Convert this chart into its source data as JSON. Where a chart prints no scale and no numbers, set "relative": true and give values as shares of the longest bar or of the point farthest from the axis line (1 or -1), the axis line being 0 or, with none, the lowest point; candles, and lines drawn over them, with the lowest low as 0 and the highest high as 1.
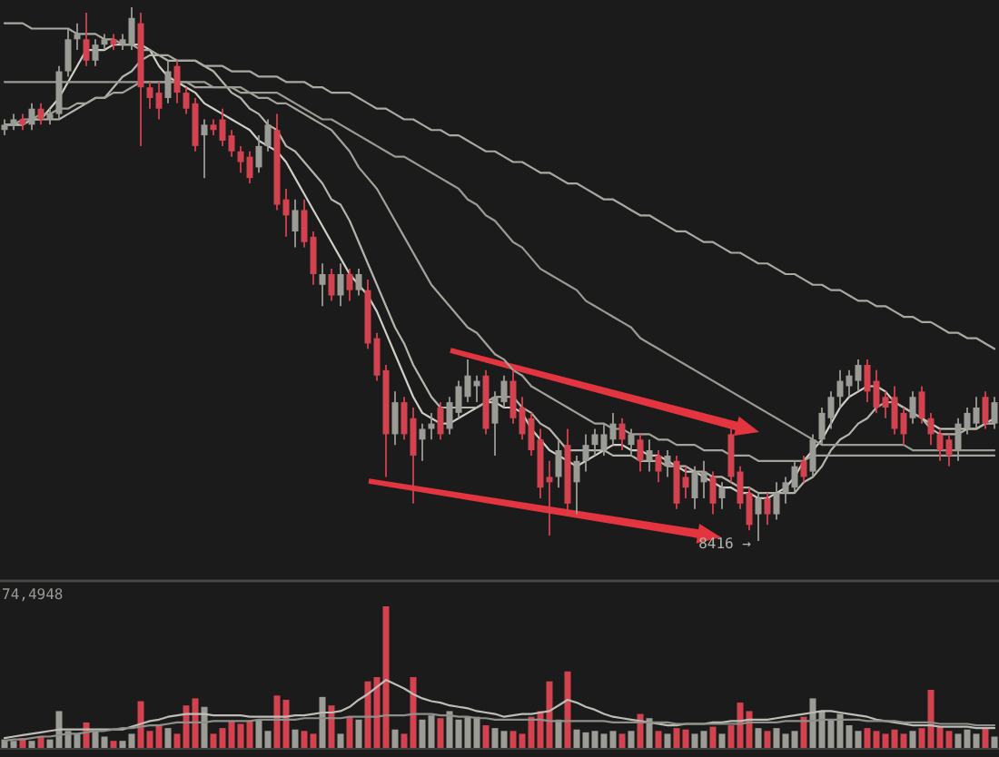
{
  "chart_data": [
    {
      "type": "candlestick",
      "relative": true,
      "categories": [
        null,
        null,
        null,
        null,
        null,
        null,
        null,
        null,
        null,
        null,
        null,
        null,
        null,
        null,
        null,
        null,
        null,
        null,
        null,
        null,
        null,
        null,
        null,
        null,
        null,
        null,
        null,
        null,
        null,
        null,
        null,
        null,
        null,
        null,
        null,
        null,
        null,
        null,
        null,
        null,
        null,
        null,
        null,
        null,
        null,
        null,
        null,
        null,
        null,
        null,
        null,
        null,
        null,
        null,
        null,
        null,
        null,
        null,
        null,
        null,
        null,
        null,
        null,
        null,
        null,
        null,
        null,
        null,
        null,
        null,
        null,
        null,
        null,
        null,
        null,
        null,
        null,
        null,
        null,
        null,
        null,
        null,
        null,
        null,
        null,
        null,
        null,
        null,
        null,
        null,
        null,
        null,
        null,
        null,
        null,
        null,
        null,
        null,
        null,
        null,
        null,
        null,
        null,
        null,
        null,
        null,
        null,
        null,
        null,
        null
      ],
      "ohlc": [
        [
          0.77,
          0.79,
          0.76,
          0.78
        ],
        [
          0.78,
          0.8,
          0.77,
          0.79
        ],
        [
          0.79,
          0.8,
          0.77,
          0.78
        ],
        [
          0.78,
          0.82,
          0.77,
          0.81
        ],
        [
          0.81,
          0.82,
          0.78,
          0.79
        ],
        [
          0.79,
          0.81,
          0.78,
          0.8
        ],
        [
          0.8,
          0.89,
          0.79,
          0.88
        ],
        [
          0.88,
          0.96,
          0.87,
          0.94
        ],
        [
          0.94,
          0.97,
          0.92,
          0.95
        ],
        [
          0.94,
          0.99,
          0.89,
          0.9
        ],
        [
          0.9,
          0.94,
          0.89,
          0.93
        ],
        [
          0.93,
          0.95,
          0.92,
          0.94
        ],
        [
          0.94,
          0.95,
          0.92,
          0.93
        ],
        [
          0.93,
          0.95,
          0.92,
          0.94
        ],
        [
          0.93,
          1.0,
          0.92,
          0.98
        ],
        [
          0.97,
          0.99,
          0.74,
          0.85
        ],
        [
          0.85,
          0.86,
          0.81,
          0.83
        ],
        [
          0.84,
          0.86,
          0.79,
          0.81
        ],
        [
          0.83,
          0.9,
          0.82,
          0.88
        ],
        [
          0.89,
          0.9,
          0.82,
          0.84
        ],
        [
          0.84,
          0.85,
          0.8,
          0.81
        ],
        [
          0.82,
          0.83,
          0.73,
          0.74
        ],
        [
          0.76,
          0.79,
          0.68,
          0.78
        ],
        [
          0.78,
          0.79,
          0.76,
          0.77
        ],
        [
          0.79,
          0.81,
          0.74,
          0.75
        ],
        [
          0.76,
          0.77,
          0.72,
          0.73
        ],
        [
          0.73,
          0.74,
          0.69,
          0.71
        ],
        [
          0.72,
          0.73,
          0.67,
          0.68
        ],
        [
          0.7,
          0.76,
          0.69,
          0.74
        ],
        [
          0.74,
          0.79,
          0.73,
          0.78
        ],
        [
          0.77,
          0.8,
          0.62,
          0.63
        ],
        [
          0.64,
          0.66,
          0.57,
          0.61
        ],
        [
          0.58,
          0.64,
          0.55,
          0.62
        ],
        [
          0.62,
          0.64,
          0.55,
          0.56
        ],
        [
          0.57,
          0.58,
          0.48,
          0.5
        ],
        [
          0.48,
          0.52,
          0.44,
          0.5
        ],
        [
          0.5,
          0.51,
          0.45,
          0.46
        ],
        [
          0.46,
          0.52,
          0.44,
          0.5
        ],
        [
          0.5,
          0.51,
          0.45,
          0.47
        ],
        [
          0.47,
          0.51,
          0.46,
          0.5
        ],
        [
          0.47,
          0.49,
          0.36,
          0.37
        ],
        [
          0.38,
          0.39,
          0.3,
          0.31
        ],
        [
          0.32,
          0.33,
          0.12,
          0.2
        ],
        [
          0.2,
          0.28,
          0.18,
          0.26
        ],
        [
          0.26,
          0.27,
          0.19,
          0.2
        ],
        [
          0.23,
          0.25,
          0.07,
          0.16
        ],
        [
          0.19,
          0.22,
          0.15,
          0.21
        ],
        [
          0.21,
          0.24,
          0.19,
          0.22
        ],
        [
          0.25,
          0.26,
          0.19,
          0.2
        ],
        [
          0.21,
          0.27,
          0.2,
          0.26
        ],
        [
          0.24,
          0.3,
          0.23,
          0.29
        ],
        [
          0.27,
          0.34,
          0.26,
          0.31
        ],
        [
          0.29,
          0.31,
          0.26,
          0.3
        ],
        [
          0.31,
          0.32,
          0.2,
          0.21
        ],
        [
          0.22,
          0.28,
          0.16,
          0.27
        ],
        [
          0.26,
          0.31,
          0.25,
          0.3
        ],
        [
          0.3,
          0.32,
          0.22,
          0.23
        ],
        [
          0.25,
          0.27,
          0.19,
          0.2
        ],
        [
          0.23,
          0.24,
          0.16,
          0.17
        ],
        [
          0.19,
          0.21,
          0.08,
          0.1
        ],
        [
          0.12,
          0.15,
          0.01,
          0.11
        ],
        [
          0.12,
          0.19,
          0.1,
          0.17
        ],
        [
          0.18,
          0.21,
          0.05,
          0.07
        ],
        [
          0.11,
          0.16,
          0.05,
          0.15
        ],
        [
          0.15,
          0.2,
          0.13,
          0.18
        ],
        [
          0.18,
          0.21,
          0.16,
          0.2
        ],
        [
          0.17,
          0.22,
          0.16,
          0.2
        ],
        [
          0.19,
          0.24,
          0.18,
          0.22
        ],
        [
          0.22,
          0.23,
          0.17,
          0.19
        ],
        [
          0.18,
          0.21,
          0.16,
          0.2
        ],
        [
          0.19,
          0.2,
          0.13,
          0.15
        ],
        [
          0.15,
          0.19,
          0.13,
          0.17
        ],
        [
          0.16,
          0.17,
          0.11,
          0.13
        ],
        [
          0.14,
          0.17,
          0.12,
          0.16
        ],
        [
          0.15,
          0.16,
          0.06,
          0.07
        ],
        [
          0.12,
          0.14,
          0.08,
          0.1
        ],
        [
          0.08,
          0.14,
          0.06,
          0.13
        ],
        [
          0.11,
          0.15,
          0.08,
          0.13
        ],
        [
          0.12,
          0.13,
          0.05,
          0.07
        ],
        [
          0.08,
          0.11,
          0.06,
          0.1
        ],
        [
          0.2,
          0.21,
          0.11,
          0.12
        ],
        [
          0.13,
          0.14,
          0.06,
          0.07
        ],
        [
          0.09,
          0.1,
          0.02,
          0.03
        ],
        [
          0.05,
          0.09,
          0.0,
          0.08
        ],
        [
          0.08,
          0.09,
          0.03,
          0.05
        ],
        [
          0.05,
          0.11,
          0.04,
          0.09
        ],
        [
          0.09,
          0.12,
          0.07,
          0.11
        ],
        [
          0.1,
          0.15,
          0.09,
          0.14
        ],
        [
          0.15,
          0.16,
          0.11,
          0.12
        ],
        [
          0.13,
          0.2,
          0.12,
          0.19
        ],
        [
          0.19,
          0.25,
          0.18,
          0.24
        ],
        [
          0.23,
          0.28,
          0.21,
          0.27
        ],
        [
          0.27,
          0.32,
          0.25,
          0.3
        ],
        [
          0.29,
          0.32,
          0.27,
          0.31
        ],
        [
          0.3,
          0.34,
          0.28,
          0.33
        ],
        [
          0.33,
          0.34,
          0.26,
          0.28
        ],
        [
          0.3,
          0.32,
          0.24,
          0.25
        ],
        [
          0.27,
          0.28,
          0.23,
          0.25
        ],
        [
          0.27,
          0.29,
          0.2,
          0.21
        ],
        [
          0.24,
          0.25,
          0.18,
          0.2
        ],
        [
          0.23,
          0.28,
          0.22,
          0.27
        ],
        [
          0.28,
          0.29,
          0.22,
          0.23
        ],
        [
          0.23,
          0.24,
          0.18,
          0.2
        ],
        [
          0.2,
          0.21,
          0.15,
          0.17
        ],
        [
          0.19,
          0.2,
          0.14,
          0.16
        ],
        [
          0.17,
          0.23,
          0.15,
          0.22
        ],
        [
          0.21,
          0.25,
          0.2,
          0.24
        ],
        [
          0.22,
          0.27,
          0.21,
          0.25
        ],
        [
          0.27,
          0.28,
          0.21,
          0.22
        ],
        [
          0.22,
          0.27,
          0.21,
          0.26
        ]
      ],
      "colors": [
        "#9c9c96",
        "#9c9c96",
        "#d2434f",
        "#9c9c96",
        "#d2434f",
        "#9c9c96",
        "#9c9c96",
        "#9c9c96",
        "#9c9c96",
        "#d2434f",
        "#9c9c96",
        "#9c9c96",
        "#d2434f",
        "#9c9c96",
        "#9c9c96",
        "#d2434f",
        "#d2434f",
        "#d2434f",
        "#9c9c96",
        "#d2434f",
        "#d2434f",
        "#d2434f",
        "#9c9c96",
        "#d2434f",
        "#d2434f",
        "#d2434f",
        "#d2434f",
        "#d2434f",
        "#9c9c96",
        "#9c9c96",
        "#d2434f",
        "#d2434f",
        "#9c9c96",
        "#d2434f",
        "#d2434f",
        "#9c9c96",
        "#d2434f",
        "#9c9c96",
        "#d2434f",
        "#9c9c96",
        "#d2434f",
        "#d2434f",
        "#d2434f",
        "#9c9c96",
        "#d2434f",
        "#d2434f",
        "#9c9c96",
        "#9c9c96",
        "#d2434f",
        "#9c9c96",
        "#9c9c96",
        "#9c9c96",
        "#9c9c96",
        "#d2434f",
        "#9c9c96",
        "#9c9c96",
        "#d2434f",
        "#d2434f",
        "#d2434f",
        "#d2434f",
        "#d2434f",
        "#9c9c96",
        "#d2434f",
        "#9c9c96",
        "#9c9c96",
        "#9c9c96",
        "#9c9c96",
        "#9c9c96",
        "#d2434f",
        "#9c9c96",
        "#d2434f",
        "#9c9c96",
        "#d2434f",
        "#9c9c96",
        "#d2434f",
        "#d2434f",
        "#9c9c96",
        "#9c9c96",
        "#d2434f",
        "#9c9c96",
        "#d2434f",
        "#d2434f",
        "#d2434f",
        "#9c9c96",
        "#d2434f",
        "#9c9c96",
        "#9c9c96",
        "#9c9c96",
        "#d2434f",
        "#9c9c96",
        "#9c9c96",
        "#9c9c96",
        "#9c9c96",
        "#9c9c96",
        "#9c9c96",
        "#d2434f",
        "#d2434f",
        "#d2434f",
        "#d2434f",
        "#d2434f",
        "#9c9c96",
        "#d2434f",
        "#d2434f",
        "#d2434f",
        "#d2434f",
        "#9c9c96",
        "#9c9c96",
        "#9c9c96",
        "#d2434f",
        "#9c9c96"
      ],
      "series": [
        {
          "type": "line",
          "color": "#cfcfc6",
          "values": [
            0.78,
            0.78,
            0.78,
            0.79,
            0.79,
            0.81,
            0.83,
            0.86,
            0.89,
            0.92,
            0.92,
            0.92,
            0.93,
            0.93,
            0.93,
            0.93,
            0.92,
            0.89,
            0.87,
            0.86,
            0.85,
            0.84,
            0.82,
            0.81,
            0.8,
            0.79,
            0.78,
            0.77,
            0.75,
            0.74,
            0.73,
            0.71,
            0.68,
            0.65,
            0.62,
            0.59,
            0.56,
            0.53,
            0.5,
            0.48,
            0.46,
            0.43,
            0.39,
            0.35,
            0.31,
            0.27,
            0.24,
            0.23,
            0.22,
            0.22,
            0.23,
            0.24,
            0.25,
            0.26,
            0.26,
            0.25,
            0.25,
            0.24,
            0.21,
            0.19,
            0.17,
            0.16,
            0.15,
            0.14,
            0.15,
            0.16,
            0.17,
            0.18,
            0.18,
            0.17,
            0.17,
            0.16,
            0.16,
            0.15,
            0.14,
            0.13,
            0.13,
            0.12,
            0.11,
            0.1,
            0.1,
            0.09,
            0.09,
            0.08,
            0.08,
            0.09,
            0.1,
            0.12,
            0.15,
            0.17,
            0.19,
            0.22,
            0.25,
            0.27,
            0.28,
            0.29,
            0.29,
            0.28,
            0.26,
            0.25,
            0.24,
            0.23,
            0.22,
            0.21,
            0.21,
            0.21,
            0.21,
            0.21,
            0.22,
            0.23
          ]
        },
        {
          "type": "line",
          "color": "#b5b5ac",
          "values": [
            0.78,
            0.78,
            0.78,
            0.79,
            0.79,
            0.79,
            0.79,
            0.8,
            0.81,
            0.82,
            0.83,
            0.83,
            0.85,
            0.87,
            0.88,
            0.9,
            0.91,
            0.91,
            0.9,
            0.9,
            0.9,
            0.9,
            0.89,
            0.88,
            0.86,
            0.84,
            0.83,
            0.81,
            0.8,
            0.78,
            0.77,
            0.74,
            0.73,
            0.71,
            0.69,
            0.67,
            0.64,
            0.63,
            0.6,
            0.56,
            0.52,
            0.48,
            0.44,
            0.4,
            0.37,
            0.33,
            0.3,
            0.27,
            0.25,
            0.25,
            0.25,
            0.25,
            0.25,
            0.26,
            0.27,
            0.27,
            0.27,
            0.25,
            0.24,
            0.22,
            0.21,
            0.19,
            0.17,
            0.17,
            0.17,
            0.17,
            0.17,
            0.16,
            0.16,
            0.16,
            0.15,
            0.15,
            0.15,
            0.14,
            0.14,
            0.14,
            0.13,
            0.13,
            0.12,
            0.12,
            0.11,
            0.1,
            0.1,
            0.09,
            0.09,
            0.09,
            0.09,
            0.09,
            0.11,
            0.12,
            0.14,
            0.17,
            0.19,
            0.2,
            0.22,
            0.23,
            0.25,
            0.26,
            0.26,
            0.25,
            0.24,
            0.23,
            0.21,
            0.2,
            0.2,
            0.2,
            0.21,
            0.21,
            0.22,
            0.22
          ]
        },
        {
          "type": "line",
          "color": "#a3a39b",
          "values": [
            0.78,
            0.78,
            0.79,
            0.79,
            0.8,
            0.8,
            0.81,
            0.81,
            0.82,
            0.82,
            0.83,
            0.83,
            0.84,
            0.84,
            0.85,
            0.86,
            0.86,
            0.86,
            0.86,
            0.86,
            0.86,
            0.85,
            0.85,
            0.85,
            0.85,
            0.85,
            0.84,
            0.84,
            0.83,
            0.83,
            0.82,
            0.82,
            0.81,
            0.8,
            0.79,
            0.78,
            0.77,
            0.75,
            0.73,
            0.7,
            0.68,
            0.66,
            0.63,
            0.6,
            0.57,
            0.54,
            0.51,
            0.48,
            0.46,
            0.44,
            0.42,
            0.4,
            0.39,
            0.37,
            0.35,
            0.34,
            0.32,
            0.31,
            0.29,
            0.28,
            0.27,
            0.26,
            0.25,
            0.24,
            0.23,
            0.22,
            0.22,
            0.21,
            0.21,
            0.2,
            0.2,
            0.2,
            0.19,
            0.19,
            0.18,
            0.18,
            0.18,
            0.17,
            0.17,
            0.17,
            0.16,
            0.16,
            0.16,
            0.15,
            0.15,
            0.15,
            0.15,
            0.15,
            0.15,
            0.16,
            0.16,
            0.16,
            0.16,
            0.16,
            0.16,
            0.16,
            0.16,
            0.16,
            0.16,
            0.16,
            0.16,
            0.16,
            0.16,
            0.16,
            0.16,
            0.16,
            0.16,
            0.16,
            0.16,
            0.16
          ]
        },
        {
          "type": "line",
          "color": "#9b9b93",
          "values": [
            0.86,
            0.86,
            0.86,
            0.86,
            0.86,
            0.86,
            0.86,
            0.86,
            0.86,
            0.86,
            0.86,
            0.86,
            0.86,
            0.86,
            0.86,
            0.86,
            0.86,
            0.86,
            0.86,
            0.86,
            0.86,
            0.86,
            0.86,
            0.85,
            0.85,
            0.85,
            0.85,
            0.84,
            0.84,
            0.84,
            0.84,
            0.83,
            0.82,
            0.81,
            0.8,
            0.79,
            0.79,
            0.78,
            0.77,
            0.76,
            0.75,
            0.74,
            0.73,
            0.72,
            0.72,
            0.71,
            0.7,
            0.69,
            0.68,
            0.67,
            0.66,
            0.64,
            0.63,
            0.61,
            0.6,
            0.58,
            0.56,
            0.55,
            0.53,
            0.51,
            0.5,
            0.49,
            0.48,
            0.47,
            0.45,
            0.44,
            0.43,
            0.42,
            0.41,
            0.4,
            0.38,
            0.37,
            0.36,
            0.35,
            0.34,
            0.33,
            0.32,
            0.31,
            0.3,
            0.29,
            0.28,
            0.27,
            0.26,
            0.25,
            0.24,
            0.23,
            0.22,
            0.21,
            0.2,
            0.19,
            0.18,
            0.18,
            0.18,
            0.18,
            0.18,
            0.18,
            0.18,
            0.18,
            0.18,
            0.18,
            0.17,
            0.17,
            0.17,
            0.17,
            0.17,
            0.17,
            0.17,
            0.17,
            0.17,
            0.17
          ]
        },
        {
          "type": "line",
          "color": "#a9a9a1",
          "values": [
            0.97,
            0.97,
            0.97,
            0.96,
            0.96,
            0.96,
            0.96,
            0.96,
            0.95,
            0.95,
            0.95,
            0.94,
            0.94,
            0.93,
            0.93,
            0.92,
            0.92,
            0.91,
            0.91,
            0.9,
            0.9,
            0.9,
            0.89,
            0.89,
            0.89,
            0.88,
            0.88,
            0.88,
            0.87,
            0.87,
            0.87,
            0.86,
            0.86,
            0.86,
            0.85,
            0.85,
            0.84,
            0.84,
            0.84,
            0.83,
            0.82,
            0.81,
            0.81,
            0.8,
            0.79,
            0.79,
            0.78,
            0.77,
            0.77,
            0.76,
            0.76,
            0.75,
            0.74,
            0.73,
            0.73,
            0.72,
            0.71,
            0.71,
            0.7,
            0.69,
            0.69,
            0.68,
            0.67,
            0.67,
            0.66,
            0.65,
            0.64,
            0.64,
            0.63,
            0.62,
            0.61,
            0.61,
            0.6,
            0.59,
            0.58,
            0.58,
            0.57,
            0.56,
            0.56,
            0.55,
            0.54,
            0.54,
            0.53,
            0.52,
            0.52,
            0.51,
            0.5,
            0.5,
            0.49,
            0.48,
            0.48,
            0.47,
            0.47,
            0.46,
            0.45,
            0.45,
            0.44,
            0.44,
            0.43,
            0.42,
            0.42,
            0.41,
            0.41,
            0.4,
            0.39,
            0.39,
            0.38,
            0.38,
            0.37,
            0.36
          ]
        }
      ],
      "annotations": [
        "8416 →"
      ]
    },
    {
      "type": "bar",
      "relative": true,
      "categories": [
        null,
        null,
        null,
        null,
        null,
        null,
        null,
        null,
        null,
        null,
        null,
        null,
        null,
        null,
        null,
        null,
        null,
        null,
        null,
        null,
        null,
        null,
        null,
        null,
        null,
        null,
        null,
        null,
        null,
        null,
        null,
        null,
        null,
        null,
        null,
        null,
        null,
        null,
        null,
        null,
        null,
        null,
        null,
        null,
        null,
        null,
        null,
        null,
        null,
        null,
        null,
        null,
        null,
        null,
        null,
        null,
        null,
        null,
        null,
        null,
        null,
        null,
        null,
        null,
        null,
        null,
        null,
        null,
        null,
        null,
        null,
        null,
        null,
        null,
        null,
        null,
        null,
        null,
        null,
        null,
        null,
        null,
        null,
        null,
        null,
        null,
        null,
        null,
        null,
        null,
        null,
        null,
        null,
        null,
        null,
        null,
        null,
        null,
        null,
        null,
        null,
        null,
        null,
        null,
        null,
        null,
        null,
        null,
        null,
        null
      ],
      "values": [
        0.06,
        0.05,
        0.07,
        0.05,
        0.08,
        0.06,
        0.26,
        0.12,
        0.1,
        0.18,
        0.12,
        0.08,
        0.05,
        0.05,
        0.1,
        0.33,
        0.12,
        0.16,
        0.14,
        0.1,
        0.3,
        0.35,
        0.29,
        0.1,
        0.14,
        0.19,
        0.17,
        0.19,
        0.2,
        0.12,
        0.37,
        0.34,
        0.13,
        0.12,
        0.1,
        0.36,
        0.3,
        0.1,
        0.22,
        0.2,
        0.47,
        0.5,
        1,
        0.13,
        0.1,
        0.5,
        0.2,
        0.23,
        0.21,
        0.26,
        0.2,
        0.22,
        0.22,
        0.16,
        0.14,
        0.12,
        0.12,
        0.1,
        0.22,
        0.26,
        0.47,
        0.2,
        0.54,
        0.13,
        0.11,
        0.12,
        0.1,
        0.12,
        0.1,
        0.12,
        0.24,
        0.21,
        0.12,
        0.1,
        0.14,
        0.13,
        0.1,
        0.12,
        0.15,
        0.1,
        0.16,
        0.32,
        0.26,
        0.14,
        0.12,
        0.14,
        0.1,
        0.12,
        0.22,
        0.35,
        0.26,
        0.2,
        0.24,
        0.16,
        0.12,
        0.14,
        0.12,
        0.1,
        0.13,
        0.1,
        0.12,
        0.14,
        0.41,
        0.15,
        0.12,
        0.1,
        0.13,
        0.1,
        0.14,
        0.08
      ],
      "colors": [
        "#9c9c96",
        "#9c9c96",
        "#d2434f",
        "#9c9c96",
        "#d2434f",
        "#9c9c96",
        "#9c9c96",
        "#9c9c96",
        "#9c9c96",
        "#d2434f",
        "#9c9c96",
        "#9c9c96",
        "#d2434f",
        "#9c9c96",
        "#9c9c96",
        "#d2434f",
        "#d2434f",
        "#d2434f",
        "#9c9c96",
        "#d2434f",
        "#d2434f",
        "#d2434f",
        "#9c9c96",
        "#d2434f",
        "#d2434f",
        "#d2434f",
        "#d2434f",
        "#d2434f",
        "#9c9c96",
        "#9c9c96",
        "#d2434f",
        "#d2434f",
        "#9c9c96",
        "#d2434f",
        "#d2434f",
        "#9c9c96",
        "#d2434f",
        "#9c9c96",
        "#d2434f",
        "#9c9c96",
        "#d2434f",
        "#d2434f",
        "#d2434f",
        "#9c9c96",
        "#d2434f",
        "#d2434f",
        "#9c9c96",
        "#9c9c96",
        "#d2434f",
        "#9c9c96",
        "#9c9c96",
        "#9c9c96",
        "#9c9c96",
        "#d2434f",
        "#9c9c96",
        "#9c9c96",
        "#d2434f",
        "#d2434f",
        "#d2434f",
        "#d2434f",
        "#d2434f",
        "#9c9c96",
        "#d2434f",
        "#9c9c96",
        "#9c9c96",
        "#9c9c96",
        "#9c9c96",
        "#9c9c96",
        "#d2434f",
        "#9c9c96",
        "#d2434f",
        "#9c9c96",
        "#d2434f",
        "#9c9c96",
        "#d2434f",
        "#d2434f",
        "#9c9c96",
        "#9c9c96",
        "#d2434f",
        "#9c9c96",
        "#d2434f",
        "#d2434f",
        "#d2434f",
        "#9c9c96",
        "#d2434f",
        "#9c9c96",
        "#9c9c96",
        "#9c9c96",
        "#d2434f",
        "#9c9c96",
        "#9c9c96",
        "#9c9c96",
        "#9c9c96",
        "#9c9c96",
        "#9c9c96",
        "#d2434f",
        "#d2434f",
        "#d2434f",
        "#d2434f",
        "#d2434f",
        "#9c9c96",
        "#d2434f",
        "#d2434f",
        "#d2434f",
        "#d2434f",
        "#9c9c96",
        "#9c9c96",
        "#9c9c96",
        "#d2434f",
        "#9c9c96"
      ],
      "series": [
        {
          "type": "line",
          "color": "#bdbdb5",
          "values": [
            0.07,
            0.08,
            0.09,
            0.1,
            0.11,
            0.12,
            0.13,
            0.13,
            0.13,
            0.13,
            0.13,
            0.13,
            0.13,
            0.13,
            0.15,
            0.17,
            0.19,
            0.2,
            0.22,
            0.23,
            0.24,
            0.24,
            0.24,
            0.23,
            0.23,
            0.23,
            0.23,
            0.22,
            0.22,
            0.22,
            0.22,
            0.22,
            0.23,
            0.23,
            0.24,
            0.25,
            0.25,
            0.26,
            0.29,
            0.34,
            0.38,
            0.43,
            0.48,
            0.45,
            0.42,
            0.38,
            0.35,
            0.33,
            0.32,
            0.3,
            0.29,
            0.28,
            0.26,
            0.25,
            0.24,
            0.22,
            0.23,
            0.24,
            0.24,
            0.25,
            0.26,
            0.3,
            0.34,
            0.32,
            0.29,
            0.27,
            0.24,
            0.22,
            0.21,
            0.2,
            0.19,
            0.18,
            0.17,
            0.16,
            0.16,
            0.17,
            0.17,
            0.17,
            0.18,
            0.18,
            0.19,
            0.19,
            0.2,
            0.2,
            0.2,
            0.21,
            0.22,
            0.23,
            0.24,
            0.25,
            0.26,
            0.26,
            0.25,
            0.24,
            0.23,
            0.22,
            0.2,
            0.19,
            0.18,
            0.17,
            0.16,
            0.16,
            0.16,
            0.15,
            0.15,
            0.15,
            0.15,
            0.14,
            0.14,
            0.14
          ]
        },
        {
          "type": "line",
          "color": "#8f8f89",
          "values": [
            0.05,
            0.06,
            0.06,
            0.07,
            0.08,
            0.08,
            0.09,
            0.1,
            0.1,
            0.11,
            0.12,
            0.12,
            0.13,
            0.14,
            0.14,
            0.15,
            0.16,
            0.16,
            0.17,
            0.18,
            0.18,
            0.18,
            0.18,
            0.19,
            0.19,
            0.19,
            0.19,
            0.19,
            0.2,
            0.2,
            0.2,
            0.2,
            0.2,
            0.21,
            0.21,
            0.21,
            0.21,
            0.21,
            0.22,
            0.22,
            0.22,
            0.22,
            0.23,
            0.23,
            0.23,
            0.24,
            0.24,
            0.24,
            0.23,
            0.23,
            0.22,
            0.22,
            0.21,
            0.21,
            0.2,
            0.2,
            0.2,
            0.2,
            0.2,
            0.2,
            0.19,
            0.19,
            0.19,
            0.19,
            0.19,
            0.19,
            0.19,
            0.18,
            0.18,
            0.18,
            0.18,
            0.18,
            0.18,
            0.18,
            0.17,
            0.17,
            0.17,
            0.17,
            0.17,
            0.17,
            0.17,
            0.17,
            0.18,
            0.18,
            0.18,
            0.18,
            0.19,
            0.19,
            0.19,
            0.19,
            0.2,
            0.2,
            0.2,
            0.2,
            0.2,
            0.19,
            0.19,
            0.19,
            0.19,
            0.18,
            0.18,
            0.18,
            0.18,
            0.17,
            0.17,
            0.17,
            0.17,
            0.16,
            0.16,
            0.16
          ]
        }
      ],
      "annotations": [
        "74,4948"
      ]
    }
  ]
}
